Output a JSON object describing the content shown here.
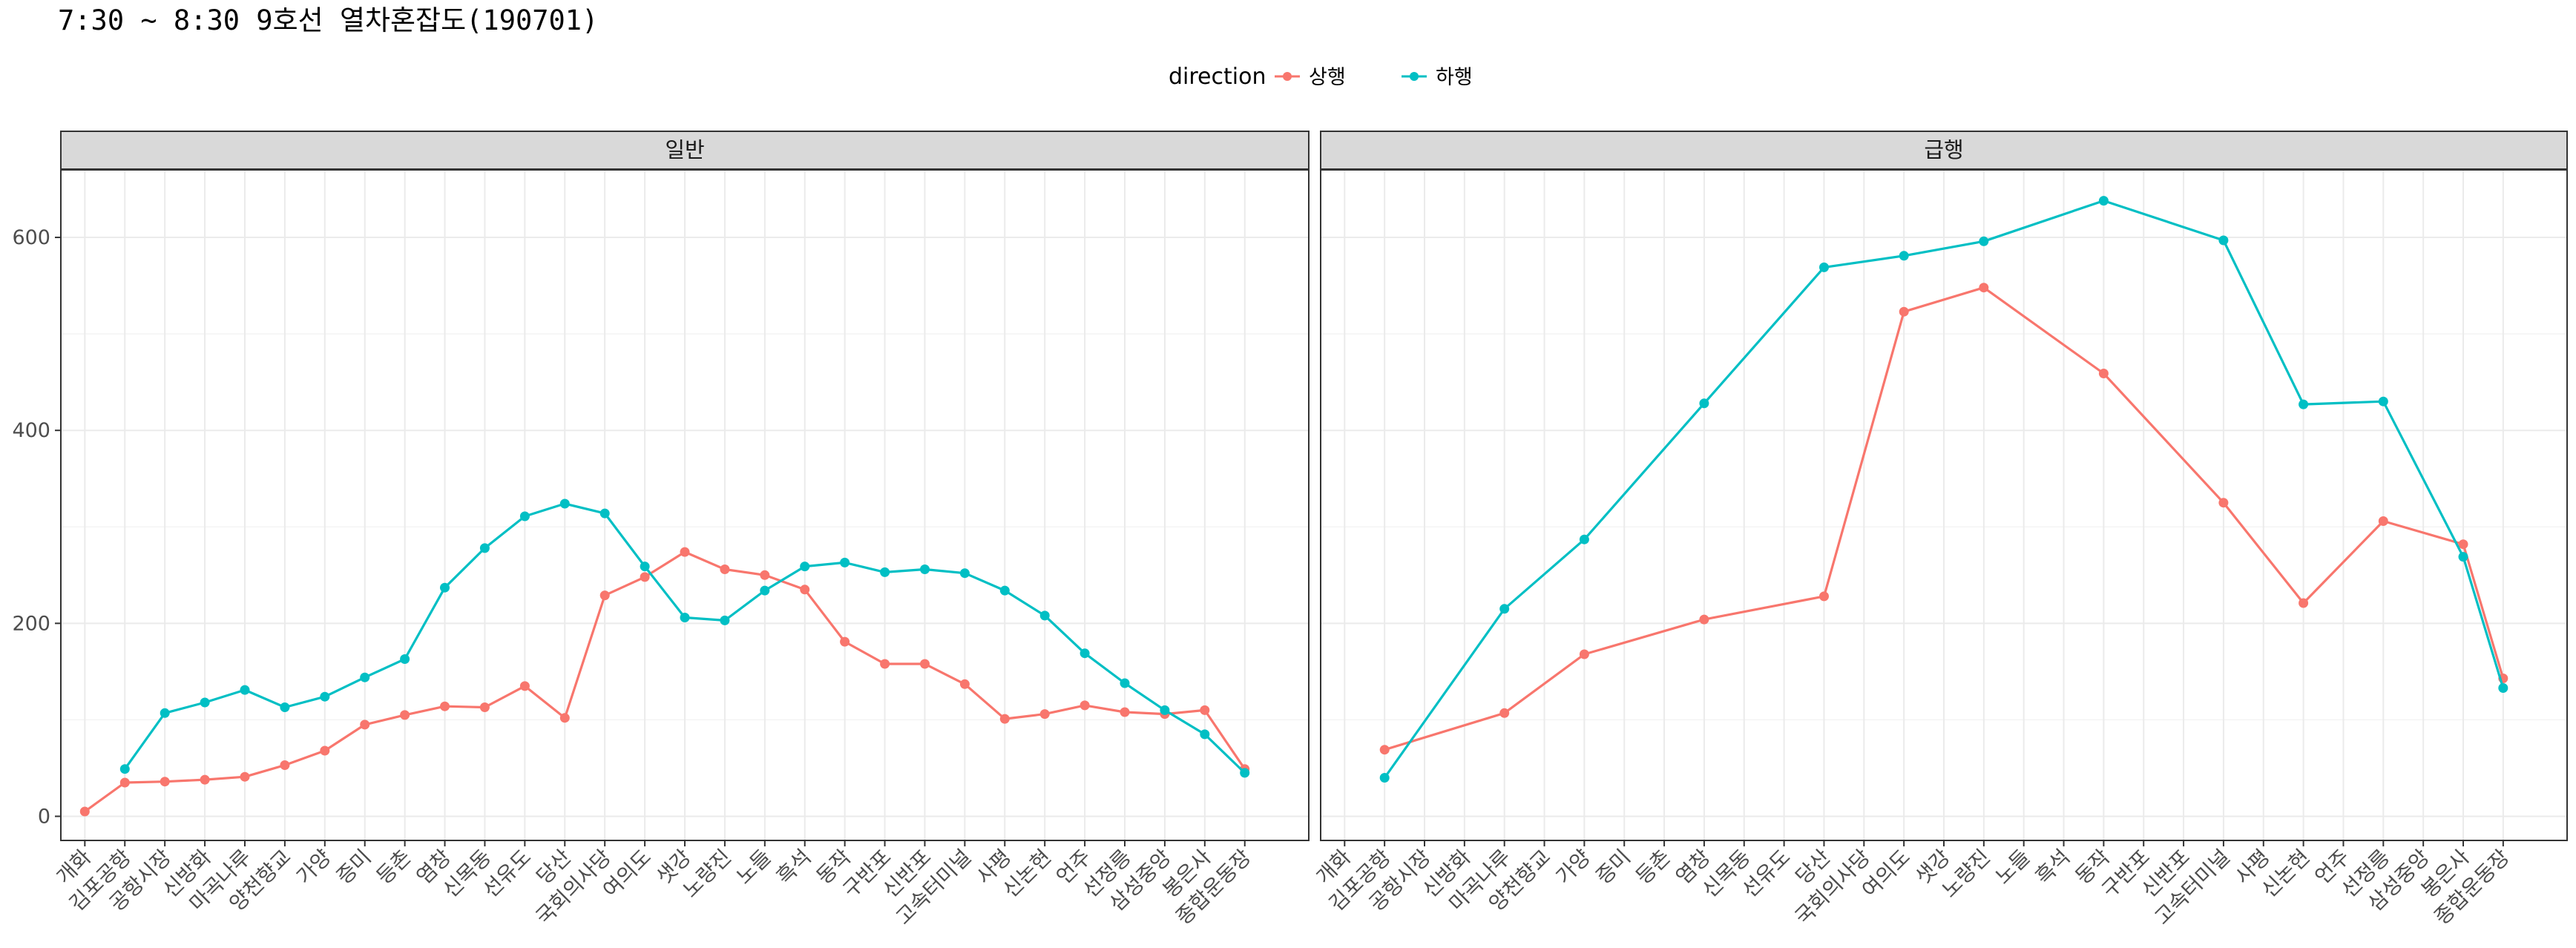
{
  "chart_data": {
    "type": "line",
    "title": "7:30 ~ 8:30 9호선 열차혼잡도(190701)",
    "xlabel": "",
    "ylabel": "",
    "ylim": [
      -25,
      670
    ],
    "yticks": [
      0,
      200,
      400,
      600
    ],
    "grid": true,
    "legend": {
      "title": "direction",
      "placement": "top",
      "entries": [
        {
          "name": "상행",
          "color": "#F8766D"
        },
        {
          "name": "하행",
          "color": "#00BFC4"
        }
      ]
    },
    "categories": [
      "개화",
      "김포공항",
      "공항시장",
      "신방화",
      "마곡나루",
      "양천향교",
      "가양",
      "증미",
      "등촌",
      "염창",
      "신목동",
      "선유도",
      "당산",
      "국회의사당",
      "여의도",
      "샛강",
      "노량진",
      "노들",
      "흑석",
      "동작",
      "구반포",
      "신반포",
      "고속터미널",
      "사평",
      "신논현",
      "언주",
      "선정릉",
      "삼성중앙",
      "봉은사",
      "종합운동장"
    ],
    "panels": [
      {
        "label": "일반",
        "series": [
          {
            "name": "상행",
            "color": "#F8766D",
            "values": [
              5,
              35,
              36,
              38,
              41,
              53,
              68,
              95,
              105,
              114,
              113,
              135,
              102,
              229,
              248,
              274,
              256,
              250,
              235,
              181,
              158,
              158,
              137,
              101,
              106,
              115,
              108,
              106,
              110,
              49
            ]
          },
          {
            "name": "하행",
            "color": "#00BFC4",
            "values": [
              null,
              49,
              107,
              118,
              131,
              113,
              124,
              144,
              163,
              237,
              278,
              311,
              324,
              314,
              259,
              206,
              203,
              234,
              259,
              263,
              253,
              256,
              252,
              234,
              208,
              169,
              138,
              110,
              85,
              45
            ]
          }
        ]
      },
      {
        "label": "급행",
        "series": [
          {
            "name": "상행",
            "color": "#F8766D",
            "values": [
              null,
              69,
              null,
              null,
              107,
              null,
              168,
              null,
              null,
              204,
              null,
              null,
              228,
              null,
              523,
              null,
              548,
              null,
              null,
              459,
              null,
              null,
              325,
              null,
              221,
              null,
              306,
              null,
              282,
              143
            ]
          },
          {
            "name": "하행",
            "color": "#00BFC4",
            "values": [
              null,
              40,
              null,
              null,
              215,
              null,
              287,
              null,
              null,
              428,
              null,
              null,
              569,
              null,
              581,
              null,
              596,
              null,
              null,
              638,
              null,
              null,
              597,
              null,
              427,
              null,
              430,
              null,
              269,
              133
            ]
          }
        ]
      }
    ]
  }
}
